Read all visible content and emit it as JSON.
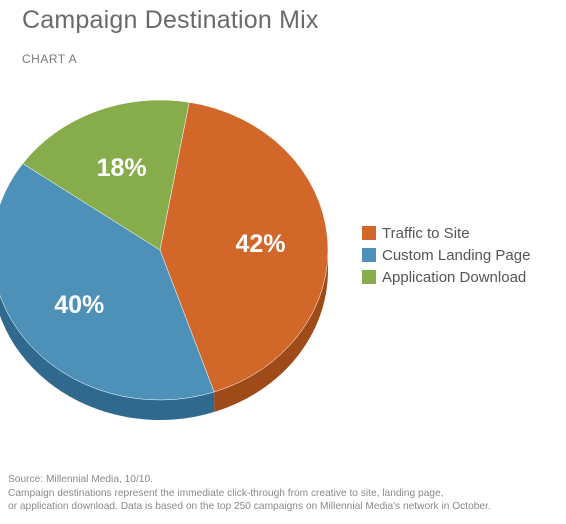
{
  "header": {
    "title": "Campaign Destination Mix",
    "subtitle": "CHART A"
  },
  "chart_data": {
    "type": "pie",
    "title": "Campaign Destination Mix",
    "subtitle": "CHART A",
    "slices": [
      {
        "label": "Traffic to Site",
        "value": 42,
        "display": "42%",
        "color": "#d2672a",
        "side_color": "#9e4a19"
      },
      {
        "label": "Custom Landing Page",
        "value": 40,
        "display": "40%",
        "color": "#4d90b8",
        "side_color": "#2f6a8e"
      },
      {
        "label": "Application Download",
        "value": 18,
        "display": "18%",
        "color": "#86ac4b",
        "side_color": "#5f7f32"
      }
    ],
    "legend_position": "right"
  },
  "footnote": {
    "source": "Source: Millennial Media, 10/10.",
    "line2": "Campaign destinations represent the immediate click-through from creative to site, landing page,",
    "line3": "or application download. Data is based on the top 250 campaigns on Millennial Media's network in October."
  }
}
